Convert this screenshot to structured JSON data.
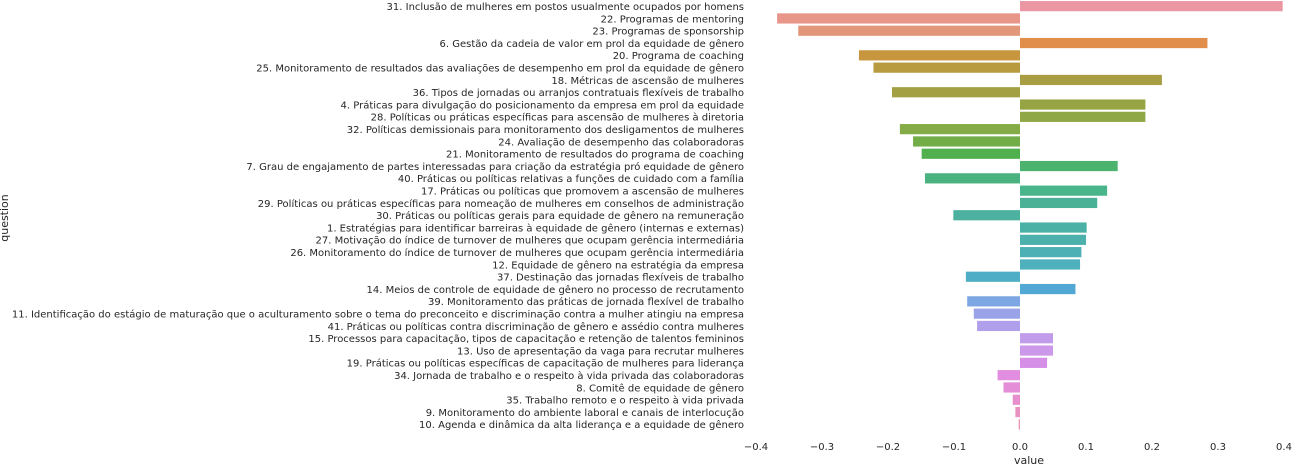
{
  "chart_data": {
    "type": "bar",
    "orientation": "horizontal",
    "xlabel": "value",
    "ylabel": "question",
    "xlim": [
      -0.4,
      0.4
    ],
    "xticks": [
      -0.4,
      -0.3,
      -0.2,
      -0.1,
      0.0,
      0.1,
      0.2,
      0.3,
      0.4
    ],
    "xtick_labels": [
      "−0.4",
      "−0.3",
      "−0.2",
      "−0.1",
      "0.0",
      "0.1",
      "0.2",
      "0.3",
      "0.4"
    ],
    "grid": false,
    "categories": [
      "31. Inclusão de mulheres em postos usualmente ocupados por homens",
      "22. Programas de mentoring",
      "23. Programas de sponsorship",
      "6. Gestão da cadeia de valor em prol da equidade de gênero",
      "20. Programa de coaching",
      "25. Monitoramento de resultados das avaliações de desempenho em prol da equidade de gênero",
      "18. Métricas de ascensão de mulheres",
      "36. Tipos de jornadas ou arranjos contratuais flexíveis de trabalho",
      "4. Práticas para divulgação do posicionamento da empresa em prol da equidade",
      "28. Políticas ou práticas específicas para ascensão de mulheres à diretoria",
      "32. Políticas demissionais para monitoramento dos desligamentos de mulheres",
      "24. Avaliação de desempenho das colaboradoras",
      "21. Monitoramento de resultados do programa de coaching",
      "7. Grau de engajamento de partes interessadas para criação da estratégia pró equidade de gênero",
      "40. Práticas ou políticas relativas a funções de cuidado com a família",
      "17. Práticas ou políticas que promovem a ascensão de mulheres",
      "29. Políticas ou práticas específicas para nomeação de mulheres em conselhos de administração",
      "30. Práticas ou políticas gerais para equidade de gênero na remuneração",
      "1. Estratégias para identificar barreiras à equidade de gênero (internas e externas)",
      "27. Motivação do índice de turnover de mulheres que ocupam gerência intermediária",
      "26. Monitoramento do índice de turnover de mulheres que ocupam gerência intermediária",
      "12. Equidade de gênero na estratégia da empresa",
      "37. Destinação das jornadas flexíveis de trabalho",
      "14. Meios de controle de equidade de gênero no processo de recrutamento",
      "39. Monitoramento das práticas de jornada flexível de trabalho",
      "11. Identificação do estágio de maturação que o aculturamento sobre o tema do preconceito e discriminação contra a mulher atingiu na empresa",
      "41. Práticas ou políticas contra discriminação de gênero e assédio contra mulheres",
      "15. Processos para capacitação, tipos de capacitação e retenção de talentos femininos",
      "13. Uso de apresentação da vaga para recrutar mulheres",
      "19. Práticas ou políticas específicas de capacitação de mulheres para liderança",
      "34. Jornada de trabalho e o respeito à vida privada das colaboradoras",
      "8. Comitê de equidade de gênero",
      "35. Trabalho remoto e o respeito à vida privada",
      "9. Monitoramento do ambiente laboral e canais de interlocução",
      "10. Agenda e dinâmica da alta liderança e a equidade de gênero"
    ],
    "values": [
      0.398,
      -0.368,
      -0.336,
      0.284,
      -0.244,
      -0.222,
      0.215,
      -0.194,
      0.19,
      0.19,
      -0.182,
      -0.162,
      -0.149,
      0.148,
      -0.144,
      0.132,
      0.117,
      -0.101,
      0.101,
      0.1,
      0.093,
      0.091,
      -0.082,
      0.084,
      -0.08,
      -0.07,
      -0.065,
      0.05,
      0.05,
      0.041,
      -0.034,
      -0.025,
      -0.011,
      -0.007,
      -0.002
    ],
    "colors": [
      "#ea96a3",
      "#e8968a",
      "#e3977a",
      "#e08e4a",
      "#c8963f",
      "#b89a3f",
      "#a89d42",
      "#a2a042",
      "#97a443",
      "#8fa845",
      "#85ab47",
      "#72ad48",
      "#4fb04d",
      "#4cb36e",
      "#49b27e",
      "#48b58b",
      "#4ab196",
      "#4cb19e",
      "#4bb1a6",
      "#4cb0ad",
      "#4db0b5",
      "#4fb0be",
      "#50adc6",
      "#51a8d4",
      "#7ca7e3",
      "#9ba3e8",
      "#b0a0eb",
      "#c09ceb",
      "#cc98e9",
      "#d68fe6",
      "#e18ee0",
      "#e48ed8",
      "#e78fcc",
      "#e891c1",
      "#e993b7"
    ]
  }
}
